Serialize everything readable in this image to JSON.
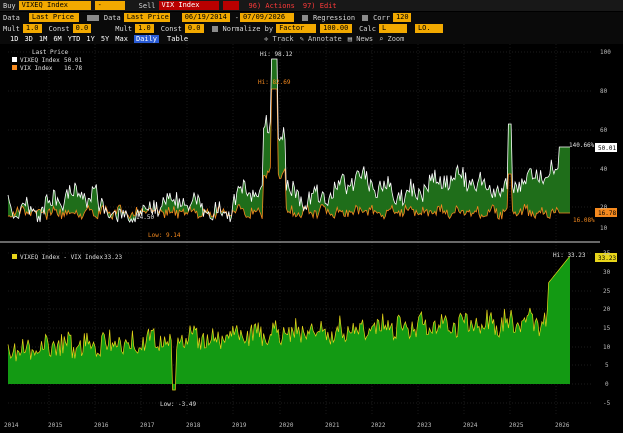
{
  "header": {
    "buy_label": "Buy",
    "buy_value": "VIXEQ Index",
    "buy_dash": "-",
    "sell_label": "Sell",
    "sell_value": "VIX Index",
    "actions": "96) Actions",
    "edit": "97) Edit"
  },
  "row2": {
    "data_label": "Data",
    "data_value": "Last Price",
    "data2_label": "Data",
    "data2_value": "Last Price",
    "start_date": "06/19/2014",
    "end_date": "07/09/2026",
    "regression": "Regression",
    "corr": "Corr",
    "corr_value": "120"
  },
  "row3": {
    "mult_label": "Mult",
    "mult_value": "1.0",
    "const_label": "Const",
    "const_value": "0.0",
    "mult2_label": "Mult",
    "mult2_value": "1.0",
    "const2_label": "Const",
    "const2_value": "0.0",
    "normalize_label": "Normalize by",
    "normalize_value": "Factor",
    "factor_value": "100.00",
    "calc_label": "Calc",
    "calc_value": "L",
    "lo_value": "LO."
  },
  "range_tabs": [
    "1D",
    "3D",
    "1M",
    "6M",
    "YTD",
    "1Y",
    "5Y",
    "Max"
  ],
  "freq_value": "Daily",
  "table_label": "Table",
  "tools": {
    "track": "Track",
    "annotate": "Annotate",
    "news": "News",
    "zoom": "Zoom"
  },
  "legend_top": {
    "title": "Last Price",
    "items": [
      {
        "name": "VIXEQ Index",
        "value": "50.01",
        "color": "#ffffff"
      },
      {
        "name": "VIX Index",
        "value": "16.78",
        "color": "#f58a1f"
      }
    ]
  },
  "legend_bottom": {
    "name": "VIXEQ Index - VIX Index",
    "value": "33.23",
    "color": "#e8d51a"
  },
  "annotations_top": {
    "hi_white": "Hi: 98.12",
    "hi_orange": "Hi: 82.69",
    "low_white": "Low: 9.14",
    "low_mid": "14.50",
    "last_white_pct": "140.66%",
    "last_white": "50.01",
    "last_orange_pct": "16.08%",
    "last_orange": "16.78"
  },
  "annotations_bottom": {
    "hi": "Hi: 33.23",
    "last": "33.23",
    "low": "Low: -3.49"
  },
  "y_axis_top": [
    "100",
    "80",
    "60",
    "40",
    "20",
    "10"
  ],
  "y_axis_bottom": [
    "35",
    "30",
    "25",
    "20",
    "15",
    "10",
    "5",
    "0",
    "-5"
  ],
  "x_axis": [
    "2014",
    "2015",
    "2016",
    "2017",
    "2018",
    "2019",
    "2020",
    "2021",
    "2022",
    "2023",
    "2024",
    "2025",
    "2026"
  ],
  "colors": {
    "accent": "#f2a900",
    "sell": "#b80000",
    "fill": "#1f7a1f",
    "diff_fill": "#169116",
    "vix": "#f58a1f"
  }
}
